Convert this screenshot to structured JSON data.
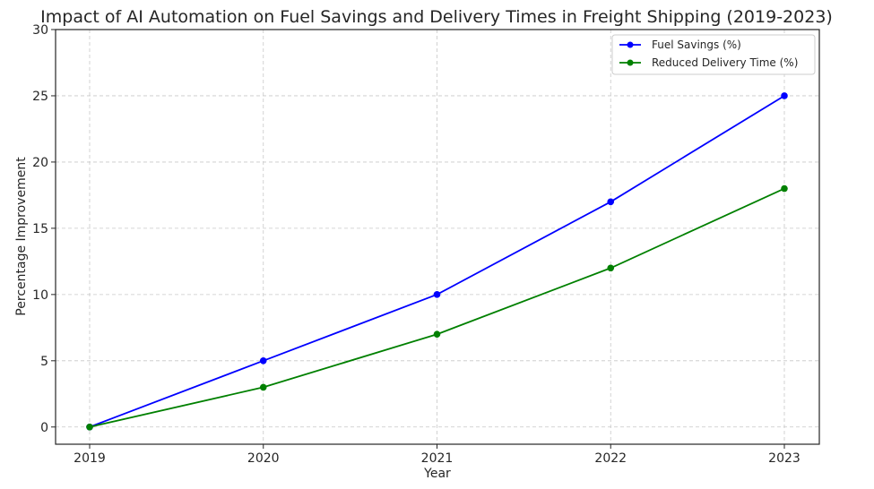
{
  "chart_data": {
    "type": "line",
    "title": "Impact of AI Automation on Fuel Savings and Delivery Times in Freight Shipping (2019-2023)",
    "xlabel": "Year",
    "ylabel": "Percentage Improvement",
    "categories": [
      "2019",
      "2020",
      "2021",
      "2022",
      "2023"
    ],
    "y_ticks": [
      0,
      5,
      10,
      15,
      20,
      25,
      30
    ],
    "ylim": [
      -1.3,
      30
    ],
    "grid": true,
    "legend_position": "top-right",
    "series": [
      {
        "name": "Fuel Savings (%)",
        "color": "#0000ff",
        "values": [
          0,
          5,
          10,
          17,
          25
        ]
      },
      {
        "name": "Reduced Delivery Time (%)",
        "color": "#008000",
        "values": [
          0,
          3,
          7,
          12,
          18
        ]
      }
    ]
  }
}
